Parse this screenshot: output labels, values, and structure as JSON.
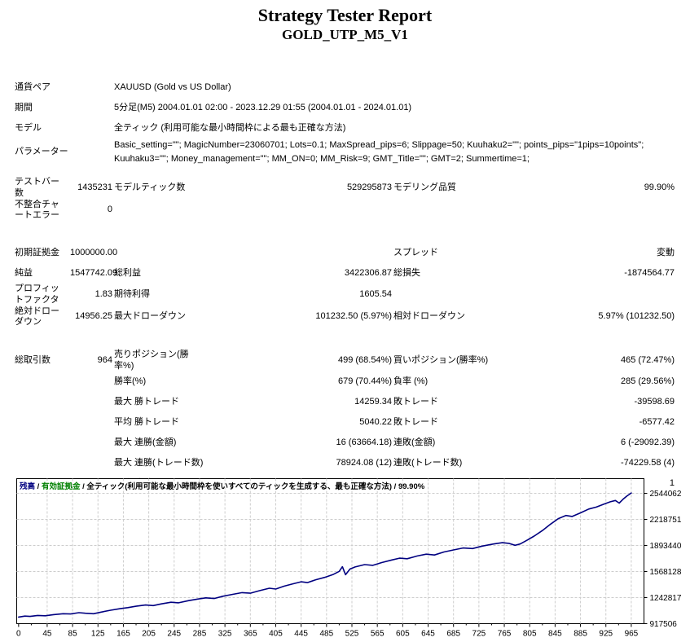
{
  "header": {
    "title": "Strategy Tester Report",
    "subtitle": "GOLD_UTP_M5_V1"
  },
  "table": {
    "info_rows": [
      {
        "label": "通貨ペア",
        "text": "XAUUSD (Gold vs US Dollar)"
      },
      {
        "label": "期間",
        "text": "5分足(M5) 2004.01.01 02:00 - 2023.12.29 01:55 (2004.01.01 - 2024.01.01)"
      },
      {
        "label": "モデル",
        "text": "全ティック (利用可能な最小時間枠による最も正確な方法)"
      },
      {
        "label": "パラメーター",
        "text": "Basic_setting=\"\"; MagicNumber=23060701; Lots=0.1; MaxSpread_pips=6; Slippage=50; Kuuhaku2=\"\"; points_pips=\"1pips=10points\"; Kuuhaku3=\"\"; Money_management=\"\"; MM_ON=0; MM_Risk=9; GMT_Title=\"\"; GMT=2; Summertime=1;"
      }
    ],
    "stat_rows": [
      {
        "gap": "small",
        "cells": [
          "テストバー\n数",
          "1435231",
          "モデルティック数",
          "529295873",
          "モデリング品質",
          "99.90%"
        ]
      },
      {
        "gap": "",
        "cells": [
          "不整合チャ\nートエラー",
          "0",
          "",
          "",
          "",
          ""
        ]
      },
      {
        "gap": "large",
        "cells": [
          "初期証拠金",
          "1000000.00",
          "",
          "",
          "スプレッド",
          "変動"
        ]
      },
      {
        "gap": "",
        "cells": [
          "純益",
          "1547742.09",
          "総利益",
          "3422306.87",
          "総損失",
          "-1874564.77"
        ]
      },
      {
        "gap": "",
        "cells": [
          "プロフィッ\nトファクタ",
          "1.83",
          "期待利得",
          "1605.54",
          "",
          ""
        ]
      },
      {
        "gap": "",
        "cells": [
          "絶対ドロー\nダウン",
          "14956.25",
          "最大ドローダウン",
          "101232.50 (5.97%)",
          "相対ドローダウン",
          "5.97% (101232.50)"
        ]
      },
      {
        "gap": "large",
        "cells": [
          "総取引数",
          "964",
          "売りポジション(勝率%)",
          "499 (68.54%)",
          "買いポジション(勝率%)",
          "465 (72.47%)"
        ]
      },
      {
        "gap": "",
        "cells": [
          "",
          "",
          "勝率(%)",
          "679 (70.44%)",
          "負率 (%)",
          "285 (29.56%)"
        ]
      },
      {
        "gap": "",
        "cells": [
          "",
          "",
          "最大 勝トレード",
          "14259.34",
          "敗トレード",
          "-39598.69"
        ]
      },
      {
        "gap": "",
        "cells": [
          "",
          "",
          "平均 勝トレード",
          "5040.22",
          "敗トレード",
          "-6577.42"
        ]
      },
      {
        "gap": "",
        "cells": [
          "",
          "",
          "最大 連勝(金額)",
          "16 (63664.18)",
          "連敗(金額)",
          "6 (-29092.39)"
        ]
      },
      {
        "gap": "",
        "cells": [
          "",
          "",
          "最大 連勝(トレード数)",
          "78924.08 (12)",
          "連敗(トレード数)",
          "-74229.58 (4)"
        ]
      },
      {
        "gap": "",
        "cells": [
          "",
          "",
          "平均 連勝",
          "3",
          "連敗",
          "1"
        ]
      }
    ]
  },
  "chart_data": {
    "type": "line",
    "legend": [
      {
        "text": "残高",
        "color": "#000080"
      },
      {
        "text": "有効証拠金",
        "color": "#008000"
      },
      {
        "text": "全ティック(利用可能な最小時間枠を使いすべてのティックを生成する、最も正確な方法)",
        "color": "#000000"
      },
      {
        "text": "99.90%",
        "color": "#000000"
      }
    ],
    "legend_separator": " / ",
    "x_ticks": [
      0,
      45,
      85,
      125,
      165,
      205,
      245,
      285,
      325,
      365,
      405,
      445,
      485,
      525,
      565,
      605,
      645,
      685,
      725,
      765,
      805,
      845,
      885,
      925,
      965
    ],
    "y_ticks": [
      2544062,
      2218751,
      1893440,
      1568128,
      1242817,
      917506
    ],
    "xlim": [
      -3,
      985
    ],
    "ylim": [
      917506,
      2727074
    ],
    "grid": "dashed",
    "line_color": "#000080",
    "grid_color": "#CDCDCD",
    "series": [
      {
        "name": "残高",
        "points": [
          [
            0,
            1000000
          ],
          [
            10,
            1012000
          ],
          [
            18,
            1008000
          ],
          [
            30,
            1020000
          ],
          [
            42,
            1016000
          ],
          [
            55,
            1030000
          ],
          [
            70,
            1042000
          ],
          [
            82,
            1038000
          ],
          [
            95,
            1055000
          ],
          [
            105,
            1048000
          ],
          [
            118,
            1042000
          ],
          [
            130,
            1062000
          ],
          [
            145,
            1085000
          ],
          [
            160,
            1105000
          ],
          [
            172,
            1118000
          ],
          [
            185,
            1135000
          ],
          [
            200,
            1150000
          ],
          [
            212,
            1143000
          ],
          [
            225,
            1165000
          ],
          [
            240,
            1185000
          ],
          [
            252,
            1178000
          ],
          [
            268,
            1205000
          ],
          [
            282,
            1225000
          ],
          [
            295,
            1240000
          ],
          [
            308,
            1232000
          ],
          [
            322,
            1260000
          ],
          [
            338,
            1285000
          ],
          [
            352,
            1305000
          ],
          [
            365,
            1298000
          ],
          [
            380,
            1330000
          ],
          [
            395,
            1360000
          ],
          [
            405,
            1350000
          ],
          [
            418,
            1385000
          ],
          [
            432,
            1415000
          ],
          [
            445,
            1440000
          ],
          [
            455,
            1430000
          ],
          [
            468,
            1465000
          ],
          [
            482,
            1495000
          ],
          [
            495,
            1530000
          ],
          [
            505,
            1570000
          ],
          [
            510,
            1628000
          ],
          [
            515,
            1528000
          ],
          [
            522,
            1600000
          ],
          [
            530,
            1625000
          ],
          [
            545,
            1655000
          ],
          [
            558,
            1645000
          ],
          [
            572,
            1680000
          ],
          [
            588,
            1712000
          ],
          [
            600,
            1735000
          ],
          [
            612,
            1728000
          ],
          [
            628,
            1762000
          ],
          [
            642,
            1785000
          ],
          [
            655,
            1775000
          ],
          [
            670,
            1812000
          ],
          [
            685,
            1838000
          ],
          [
            700,
            1862000
          ],
          [
            715,
            1855000
          ],
          [
            730,
            1885000
          ],
          [
            748,
            1912000
          ],
          [
            762,
            1928000
          ],
          [
            772,
            1920000
          ],
          [
            782,
            1895000
          ],
          [
            790,
            1912000
          ],
          [
            800,
            1955000
          ],
          [
            812,
            2010000
          ],
          [
            825,
            2080000
          ],
          [
            838,
            2160000
          ],
          [
            850,
            2228000
          ],
          [
            862,
            2268000
          ],
          [
            872,
            2255000
          ],
          [
            885,
            2300000
          ],
          [
            898,
            2348000
          ],
          [
            910,
            2372000
          ],
          [
            922,
            2410000
          ],
          [
            932,
            2438000
          ],
          [
            940,
            2455000
          ],
          [
            946,
            2422000
          ],
          [
            952,
            2470000
          ],
          [
            958,
            2510000
          ],
          [
            965,
            2547742
          ]
        ]
      }
    ]
  }
}
